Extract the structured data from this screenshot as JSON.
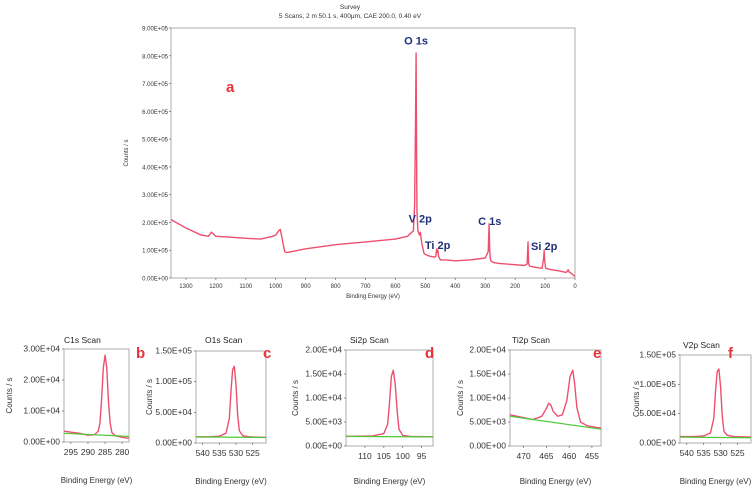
{
  "header": {
    "title": "Survey",
    "subtitle": "5 Scans,  2 m 50.1 s,  400μm,  CAE 200.0,  0.40 eV"
  },
  "colors": {
    "spectrum": "#ee4f6e",
    "background_line": "#4cc93a",
    "panel_letter": "#e8333b",
    "peak_label": "#1f2f7a"
  },
  "chart_data": [
    {
      "type": "line",
      "panel": "a",
      "title": "Survey",
      "xlabel": "Binding Energy (eV)",
      "ylabel": "Counts / s",
      "xlim": [
        1350,
        0
      ],
      "ylim": [
        0,
        900000
      ],
      "x_ticks": [
        "1300",
        "1200",
        "1100",
        "1000",
        "900",
        "800",
        "700",
        "600",
        "500",
        "400",
        "300",
        "200",
        "100",
        "0"
      ],
      "y_ticks": [
        "0.00E+00",
        "1.00E+05",
        "2.00E+05",
        "3.00E+05",
        "4.00E+05",
        "5.00E+05",
        "6.00E+05",
        "7.00E+05",
        "8.00E+05",
        "9.00E+05"
      ],
      "annotations": [
        {
          "text": "O 1s",
          "x": 531,
          "y": 840000
        },
        {
          "text": "V 2p",
          "x": 517,
          "y": 200000
        },
        {
          "text": "Ti 2p",
          "x": 459,
          "y": 105000
        },
        {
          "text": "C 1s",
          "x": 285,
          "y": 190000
        },
        {
          "text": "Si 2p",
          "x": 103,
          "y": 100000
        }
      ],
      "series": [
        {
          "x": [
            1350,
            1300,
            1250,
            1225,
            1215,
            1200,
            1150,
            1100,
            1050,
            1010,
            1000,
            990,
            985,
            980,
            975,
            970,
            965,
            960,
            900,
            800,
            700,
            600,
            560,
            550,
            545,
            540,
            536,
            533,
            531,
            529,
            528,
            525,
            520,
            517,
            512,
            505,
            500,
            490,
            470,
            465,
            462,
            460,
            458,
            456,
            450,
            430,
            400,
            350,
            300,
            290,
            287,
            285,
            283,
            280,
            270,
            250,
            200,
            170,
            160,
            157,
            155,
            153,
            150,
            130,
            110,
            105,
            103,
            101,
            98,
            80,
            50,
            30,
            25,
            23,
            20,
            10,
            5,
            0
          ],
          "y": [
            210000,
            180000,
            155000,
            150000,
            165000,
            150000,
            147000,
            143000,
            140000,
            150000,
            155000,
            170000,
            175000,
            150000,
            120000,
            95000,
            92000,
            92000,
            105000,
            120000,
            130000,
            140000,
            150000,
            160000,
            165000,
            170000,
            260000,
            550000,
            810000,
            380000,
            240000,
            170000,
            155000,
            165000,
            125000,
            90000,
            85000,
            80000,
            75000,
            78000,
            105000,
            92000,
            100000,
            78000,
            65000,
            65000,
            62000,
            65000,
            72000,
            95000,
            195000,
            100000,
            70000,
            60000,
            55000,
            52000,
            48000,
            45000,
            50000,
            130000,
            55000,
            45000,
            42000,
            38000,
            35000,
            70000,
            100000,
            60000,
            35000,
            30000,
            25000,
            20000,
            25000,
            30000,
            22000,
            15000,
            10000,
            5000
          ]
        }
      ]
    },
    {
      "type": "line",
      "panel": "b",
      "title": "C1s Scan",
      "xlabel": "Binding Energy (eV)",
      "ylabel": "Counts / s",
      "xlim": [
        297,
        278
      ],
      "ylim": [
        0,
        30000
      ],
      "x_ticks": [
        "295",
        "290",
        "285",
        "280"
      ],
      "y_ticks": [
        "0.00E+00",
        "1.00E+04",
        "2.00E+04",
        "3.00E+04"
      ],
      "series": [
        {
          "name": "spectrum",
          "x": [
            297,
            292,
            290,
            288,
            287,
            286.5,
            286,
            285.5,
            285,
            284.5,
            284,
            283.5,
            283,
            282,
            280,
            278
          ],
          "y": [
            3500,
            2700,
            2200,
            2400,
            3500,
            6000,
            14000,
            24000,
            28000,
            24000,
            13000,
            6000,
            3000,
            2000,
            1500,
            1200
          ]
        },
        {
          "name": "background",
          "x": [
            297,
            278
          ],
          "y": [
            2800,
            1800
          ]
        }
      ]
    },
    {
      "type": "line",
      "panel": "c",
      "title": "O1s Scan",
      "xlabel": "Binding Energy (eV)",
      "ylabel": "Counts / s",
      "xlim": [
        542,
        521
      ],
      "ylim": [
        0,
        150000
      ],
      "x_ticks": [
        "540",
        "535",
        "530",
        "525"
      ],
      "y_ticks": [
        "0.00E+00",
        "5.00E+04",
        "1.00E+05",
        "1.50E+05"
      ],
      "series": [
        {
          "name": "spectrum",
          "x": [
            542,
            538,
            535,
            533,
            532,
            531.5,
            531,
            530.5,
            530,
            529.5,
            529,
            528,
            526,
            521
          ],
          "y": [
            10000,
            10000,
            11000,
            16000,
            40000,
            85000,
            120000,
            125000,
            95000,
            45000,
            20000,
            12000,
            10000,
            9000
          ]
        },
        {
          "name": "background",
          "x": [
            542,
            521
          ],
          "y": [
            10000,
            9000
          ]
        }
      ]
    },
    {
      "type": "line",
      "panel": "d",
      "title": "Si2p Scan",
      "xlabel": "Binding Energy (eV)",
      "ylabel": "Counts / s",
      "xlim": [
        115,
        92
      ],
      "ylim": [
        0,
        20000
      ],
      "x_ticks": [
        "110",
        "105",
        "100",
        "95"
      ],
      "y_ticks": [
        "0.00E+00",
        "5.00E+03",
        "1.00E+04",
        "1.50E+04",
        "2.00E+04"
      ],
      "series": [
        {
          "name": "spectrum",
          "x": [
            115,
            108,
            105,
            104,
            103.5,
            103,
            102.5,
            102,
            101.5,
            101,
            100,
            98,
            92
          ],
          "y": [
            2000,
            2100,
            2600,
            4500,
            9000,
            14500,
            15800,
            13000,
            7500,
            3500,
            2200,
            2000,
            1900
          ]
        },
        {
          "name": "background",
          "x": [
            115,
            92
          ],
          "y": [
            2000,
            1900
          ]
        }
      ]
    },
    {
      "type": "line",
      "panel": "e",
      "title": "Ti2p Scan",
      "xlabel": "Binding Energy (eV)",
      "ylabel": "Counts / s",
      "xlim": [
        473,
        453
      ],
      "ylim": [
        0,
        20000
      ],
      "x_ticks": [
        "470",
        "465",
        "460",
        "455"
      ],
      "y_ticks": [
        "0.00E+00",
        "5.00E+03",
        "1.00E+04",
        "1.50E+04",
        "2.00E+04"
      ],
      "series": [
        {
          "name": "spectrum",
          "x": [
            473,
            468,
            466,
            465,
            464.5,
            464,
            463.5,
            462.5,
            461.5,
            460.5,
            459.8,
            459.2,
            458.8,
            458.3,
            457.5,
            456,
            453
          ],
          "y": [
            6500,
            5500,
            6200,
            7800,
            8900,
            8500,
            7200,
            6200,
            6500,
            9500,
            14500,
            15800,
            13000,
            8000,
            5000,
            4200,
            3700
          ]
        },
        {
          "name": "background",
          "x": [
            473,
            453
          ],
          "y": [
            6200,
            3500
          ]
        }
      ]
    },
    {
      "type": "line",
      "panel": "f",
      "title": "V2p Scan",
      "xlabel": "Binding Energy (eV)",
      "ylabel": "Counts / s",
      "xlim": [
        542,
        521
      ],
      "ylim": [
        0,
        150000
      ],
      "x_ticks": [
        "540",
        "535",
        "530",
        "525"
      ],
      "y_ticks": [
        "0.00E+00",
        "5.00E+04",
        "1.00E+05",
        "1.50E+05"
      ],
      "series": [
        {
          "name": "spectrum",
          "x": [
            542,
            538,
            535,
            533,
            532,
            531.5,
            531,
            530.5,
            530,
            529.5,
            529,
            528,
            526,
            521
          ],
          "y": [
            11000,
            11000,
            12000,
            17000,
            42000,
            88000,
            122000,
            126000,
            96000,
            46000,
            20000,
            13000,
            11000,
            10000
          ]
        },
        {
          "name": "background",
          "x": [
            542,
            521
          ],
          "y": [
            10000,
            9000
          ]
        }
      ]
    }
  ]
}
